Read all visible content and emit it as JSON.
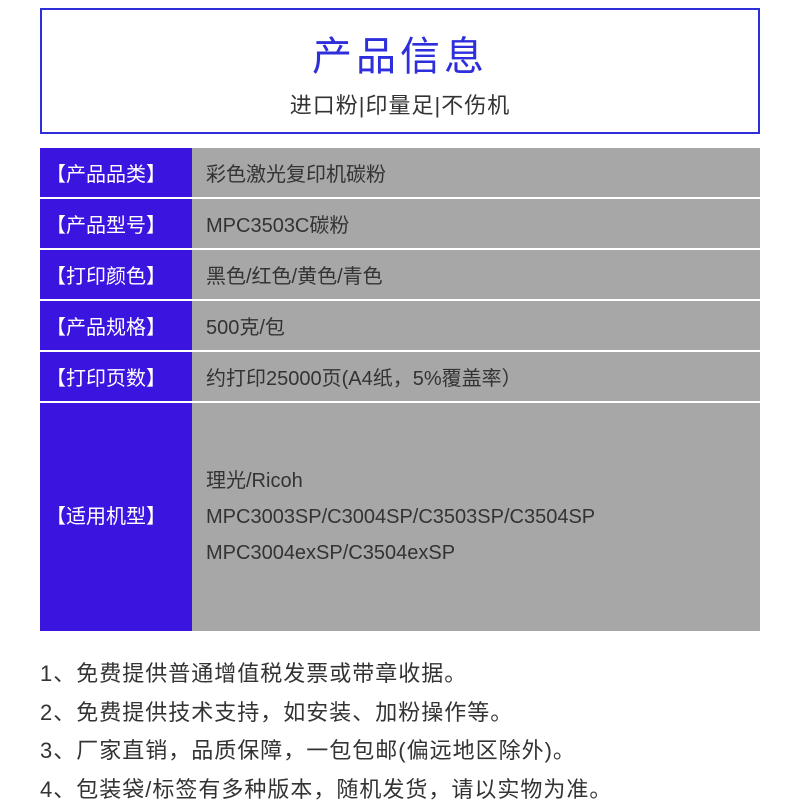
{
  "header": {
    "title": "产品信息",
    "subtitle": "进口粉|印量足|不伤机"
  },
  "colors": {
    "accent": "#2e2edb",
    "label_bg": "#3b14e0",
    "value_bg": "#a7a7a7",
    "text": "#333333",
    "border": "#ffffff"
  },
  "specs": [
    {
      "label": "【产品品类】",
      "value": "彩色激光复印机碳粉"
    },
    {
      "label": "【产品型号】",
      "value": "MPC3503C碳粉"
    },
    {
      "label": "【打印颜色】",
      "value": "黑色/红色/黄色/青色"
    },
    {
      "label": "【产品规格】",
      "value": "500克/包"
    },
    {
      "label": "【打印页数】",
      "value": "约打印25000页(A4纸，5%覆盖率）"
    }
  ],
  "compat": {
    "label": "【适用机型】",
    "line1": "理光/Ricoh",
    "line2": "MPC3003SP/C3004SP/C3503SP/C3504SP",
    "line3": "MPC3004exSP/C3504exSP"
  },
  "notes": [
    "1、免费提供普通增值税发票或带章收据。",
    "2、免费提供技术支持，如安装、加粉操作等。",
    "3、厂家直销，品质保障，一包包邮(偏远地区除外)。",
    "4、包装袋/标签有多种版本，随机发货，请以实物为准。"
  ]
}
